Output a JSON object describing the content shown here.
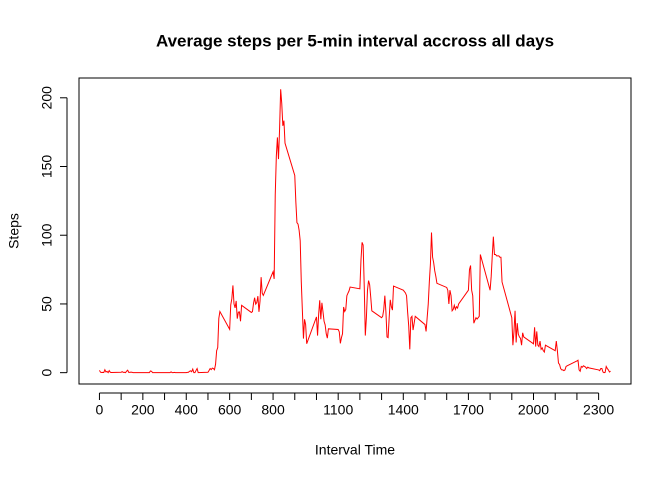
{
  "chart_data": {
    "type": "line",
    "title": "Average steps per 5-min interval accross all days",
    "xlabel": "Interval Time",
    "ylabel": "Steps",
    "color": "#ff0000",
    "xlim": [
      -94.2,
      2449.2
    ],
    "ylim": [
      -8.25,
      214.4
    ],
    "xticks": [
      0,
      200,
      400,
      600,
      800,
      1100,
      1400,
      1700,
      2000,
      2300
    ],
    "xticks_unlabeled": [
      100,
      300,
      500,
      700,
      900,
      1000,
      1200,
      1300,
      1500,
      1600,
      1800,
      1900,
      2100,
      2200
    ],
    "yticks": [
      0,
      50,
      100,
      150,
      200
    ],
    "x": [
      0,
      5,
      10,
      15,
      20,
      25,
      30,
      35,
      40,
      45,
      50,
      55,
      100,
      105,
      110,
      115,
      120,
      125,
      130,
      135,
      140,
      145,
      150,
      155,
      200,
      205,
      210,
      215,
      220,
      225,
      230,
      235,
      240,
      245,
      250,
      255,
      300,
      305,
      310,
      315,
      320,
      325,
      330,
      335,
      340,
      345,
      350,
      355,
      400,
      405,
      410,
      415,
      420,
      425,
      430,
      435,
      440,
      445,
      450,
      455,
      500,
      505,
      510,
      515,
      520,
      525,
      530,
      535,
      540,
      545,
      550,
      555,
      600,
      605,
      610,
      615,
      620,
      625,
      630,
      635,
      640,
      645,
      650,
      655,
      700,
      705,
      710,
      715,
      720,
      725,
      730,
      735,
      740,
      745,
      750,
      755,
      800,
      805,
      810,
      815,
      820,
      825,
      830,
      835,
      840,
      845,
      850,
      855,
      900,
      905,
      910,
      915,
      920,
      925,
      930,
      935,
      940,
      945,
      950,
      955,
      1000,
      1005,
      1010,
      1015,
      1020,
      1025,
      1030,
      1035,
      1040,
      1045,
      1050,
      1055,
      1100,
      1105,
      1110,
      1115,
      1120,
      1125,
      1130,
      1135,
      1140,
      1145,
      1150,
      1155,
      1200,
      1205,
      1210,
      1215,
      1220,
      1225,
      1230,
      1235,
      1240,
      1245,
      1250,
      1255,
      1300,
      1305,
      1310,
      1315,
      1320,
      1325,
      1330,
      1335,
      1340,
      1345,
      1350,
      1355,
      1400,
      1405,
      1410,
      1415,
      1420,
      1425,
      1430,
      1435,
      1440,
      1445,
      1450,
      1455,
      1500,
      1505,
      1510,
      1515,
      1520,
      1525,
      1530,
      1535,
      1540,
      1545,
      1550,
      1555,
      1600,
      1605,
      1610,
      1615,
      1620,
      1625,
      1630,
      1635,
      1640,
      1645,
      1650,
      1655,
      1700,
      1705,
      1710,
      1715,
      1720,
      1725,
      1730,
      1735,
      1740,
      1745,
      1750,
      1755,
      1800,
      1805,
      1810,
      1815,
      1820,
      1825,
      1830,
      1835,
      1840,
      1845,
      1850,
      1855,
      1900,
      1905,
      1910,
      1915,
      1920,
      1925,
      1930,
      1935,
      1940,
      1945,
      1950,
      1955,
      2000,
      2005,
      2010,
      2015,
      2020,
      2025,
      2030,
      2035,
      2040,
      2045,
      2050,
      2055,
      2100,
      2105,
      2110,
      2115,
      2120,
      2125,
      2130,
      2135,
      2140,
      2145,
      2150,
      2155,
      2200,
      2205,
      2210,
      2215,
      2220,
      2225,
      2230,
      2235,
      2240,
      2245,
      2250,
      2255,
      2300,
      2305,
      2310,
      2315,
      2320,
      2325,
      2330,
      2335,
      2340,
      2345,
      2350,
      2355
    ],
    "values": [
      1.7,
      0.3,
      0.1,
      0.2,
      0.1,
      2.1,
      0.5,
      0.9,
      0,
      1.5,
      0.3,
      0.1,
      0.3,
      0.7,
      0.2,
      0.3,
      0,
      1.1,
      1.8,
      0.2,
      0.2,
      0.4,
      0.3,
      0,
      0,
      0,
      0,
      0,
      0,
      0,
      0,
      1.2,
      1,
      0,
      0,
      0,
      0,
      0,
      0,
      0,
      0,
      0,
      0.6,
      0,
      0,
      0.2,
      0,
      0,
      0,
      0.2,
      0.3,
      1,
      1.3,
      0.7,
      2.6,
      0,
      0,
      1.6,
      3,
      0,
      0.3,
      1.6,
      3,
      2.2,
      3.3,
      3,
      2.1,
      6.1,
      16,
      18.3,
      39.5,
      44.5,
      31.5,
      49.3,
      53.8,
      63.5,
      50,
      47.1,
      52.2,
      39.3,
      44,
      44.2,
      37.4,
      49,
      43.8,
      44.4,
      50.5,
      54.5,
      49.9,
      51,
      55.7,
      44.3,
      52.3,
      69.5,
      57.8,
      56.2,
      73.4,
      68.2,
      129.4,
      157.5,
      171.2,
      155.4,
      177.3,
      206.2,
      195.9,
      179.6,
      183.4,
      167,
      143.5,
      124,
      109.1,
      108.1,
      103.7,
      96,
      66.2,
      45.2,
      24.8,
      38.8,
      35,
      21.1,
      40.6,
      27,
      42.4,
      52.7,
      38.9,
      50.8,
      44.3,
      37.4,
      34.7,
      28.3,
      25.1,
      31.9,
      31.4,
      29.7,
      21.3,
      25.5,
      28.3,
      47.8,
      44.5,
      46,
      56,
      57.8,
      59.5,
      62.3,
      61,
      81.9,
      94.8,
      92.8,
      63.4,
      27,
      40,
      60,
      67,
      64,
      55,
      45,
      40,
      41,
      46,
      56,
      44,
      26,
      25.5,
      40,
      53,
      48,
      45.5,
      63,
      60,
      59,
      58,
      56,
      44,
      34,
      17,
      40,
      41,
      31,
      36,
      41,
      35,
      30,
      40,
      50,
      66,
      79,
      102,
      84,
      80,
      74,
      70,
      65,
      62,
      60,
      50,
      60,
      56,
      45,
      46,
      49,
      46,
      48,
      47,
      50,
      60,
      75,
      78,
      60,
      56,
      36,
      38,
      40,
      39,
      40,
      41,
      86,
      60,
      70,
      85,
      99,
      86,
      86,
      85,
      85,
      85,
      84,
      84,
      66,
      40,
      20,
      30,
      45,
      22,
      36,
      28,
      26,
      25,
      20,
      29,
      26,
      21,
      33,
      19,
      30,
      20,
      19,
      23,
      17,
      18,
      16,
      15,
      20,
      16,
      23,
      16,
      7,
      6,
      3,
      2,
      2,
      1.5,
      2,
      4.5,
      5,
      8.5,
      9,
      2,
      1,
      4.5,
      4,
      5,
      4.5,
      4,
      3,
      4,
      3.5,
      2,
      1.5,
      3,
      3,
      0.5,
      0,
      0.2,
      4.5,
      3,
      2,
      0.5,
      1.1
    ]
  }
}
